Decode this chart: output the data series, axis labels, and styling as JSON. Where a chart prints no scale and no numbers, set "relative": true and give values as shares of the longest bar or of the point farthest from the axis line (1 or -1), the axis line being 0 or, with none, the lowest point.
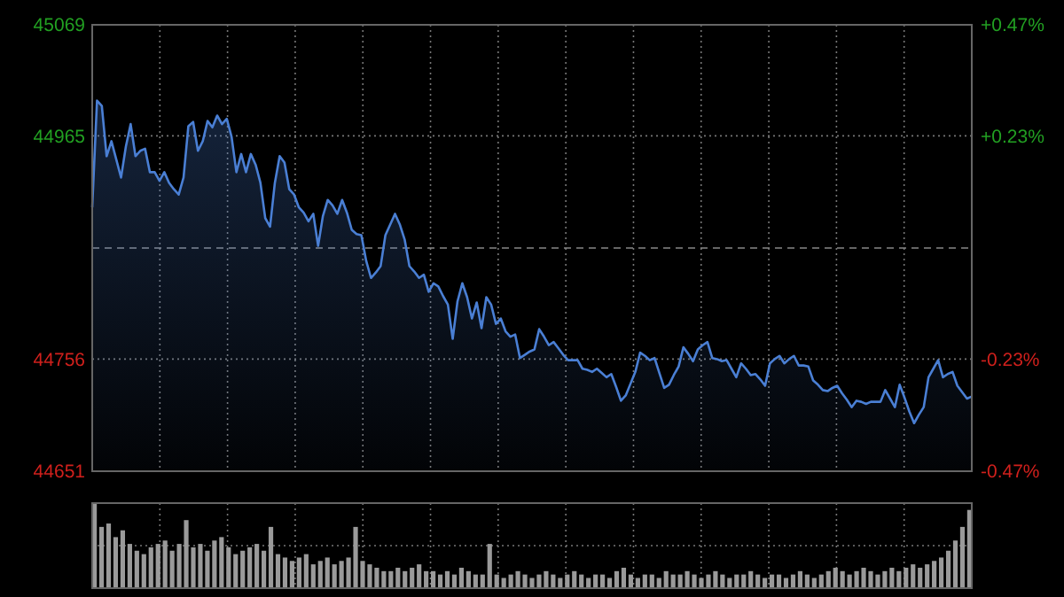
{
  "chart_data": [
    {
      "type": "area",
      "color": "#4a7fd4",
      "categories": [
        null,
        null,
        null,
        null,
        null,
        null,
        null,
        null,
        null,
        null,
        null,
        null,
        null,
        null,
        null,
        null,
        null,
        null,
        null,
        null,
        null,
        null,
        null,
        null,
        null,
        null,
        null,
        null,
        null,
        null,
        null,
        null,
        null,
        null,
        null,
        null,
        null,
        null,
        null,
        null,
        null,
        null,
        null,
        null,
        null,
        null,
        null,
        null,
        null,
        null,
        null,
        null,
        null,
        null,
        null,
        null,
        null,
        null,
        null,
        null,
        null,
        null,
        null,
        null,
        null,
        null,
        null,
        null,
        null,
        null,
        null,
        null,
        null,
        null,
        null,
        null,
        null,
        null,
        null,
        null,
        null,
        null,
        null,
        null,
        null,
        null,
        null,
        null,
        null,
        null,
        null,
        null,
        null,
        null,
        null,
        null,
        null,
        null,
        null,
        null,
        null,
        null,
        null,
        null,
        null,
        null,
        null,
        null,
        null,
        null,
        null,
        null,
        null,
        null,
        null,
        null,
        null,
        null,
        null,
        null,
        null,
        null,
        null,
        null,
        null,
        null,
        null,
        null,
        null,
        null,
        null,
        null,
        null,
        null,
        null,
        null,
        null,
        null,
        null,
        null,
        null,
        null,
        null,
        null,
        null,
        null,
        null,
        null,
        null,
        null,
        null,
        null,
        null,
        null,
        null,
        null,
        null,
        null,
        null,
        null,
        null,
        null,
        null,
        null,
        null,
        null,
        null,
        null,
        null,
        null,
        null,
        null,
        null,
        null,
        null,
        null,
        null,
        null,
        null,
        null,
        null,
        null,
        null,
        null
      ],
      "values": [
        44898,
        44998,
        44993,
        44946,
        44960,
        44943,
        44926,
        44955,
        44976,
        44946,
        44951,
        44953,
        44931,
        44931,
        44923,
        44931,
        44921,
        44915,
        44910,
        44926,
        44974,
        44978,
        44951,
        44960,
        44979,
        44973,
        44984,
        44976,
        44981,
        44964,
        44931,
        44948,
        44931,
        44948,
        44938,
        44921,
        44888,
        44880,
        44921,
        44946,
        44940,
        44915,
        44910,
        44898,
        44893,
        44885,
        44892,
        44862,
        44890,
        44905,
        44900,
        44892,
        44905,
        44893,
        44877,
        44873,
        44872,
        44848,
        44832,
        44837,
        44843,
        44872,
        44882,
        44892,
        44882,
        44868,
        44843,
        44838,
        44832,
        44835,
        44819,
        44827,
        44824,
        44815,
        44807,
        44775,
        44810,
        44827,
        44814,
        44794,
        44809,
        44785,
        44814,
        44807,
        44789,
        44794,
        44782,
        44777,
        44779,
        44757,
        44760,
        44763,
        44765,
        44784,
        44777,
        44769,
        44772,
        44766,
        44760,
        44755,
        44755,
        44755,
        44747,
        44746,
        44744,
        44747,
        44743,
        44739,
        44742,
        44730,
        44717,
        44722,
        44733,
        44744,
        44762,
        44759,
        44755,
        44757,
        44743,
        44729,
        44732,
        44741,
        44749,
        44767,
        44761,
        44754,
        44765,
        44769,
        44772,
        44757,
        44756,
        44754,
        44755,
        44747,
        44739,
        44752,
        44747,
        44741,
        44742,
        44737,
        44731,
        44752,
        44756,
        44759,
        44752,
        44756,
        44759,
        44750,
        44750,
        44749,
        44736,
        44732,
        44727,
        44726,
        44729,
        44731,
        44724,
        44718,
        44711,
        44717,
        44716,
        44714,
        44716,
        44716,
        44716,
        44727,
        44719,
        44711,
        44732,
        44720,
        44707,
        44696,
        44704,
        44711,
        44739,
        44747,
        44755,
        44739,
        44742,
        44744,
        44731,
        44725,
        44719,
        44721
      ],
      "ylim": [
        44651,
        45069
      ],
      "yticks": [
        44651,
        44756,
        44965,
        45069
      ],
      "y2lim": [
        -0.466,
        0.466
      ],
      "y2ticks": [
        {
          "value": -0.466,
          "label": "-0.47%"
        },
        {
          "value": -0.232,
          "label": "-0.23%"
        },
        {
          "value": 0.234,
          "label": "+0.23%"
        },
        {
          "value": 0.466,
          "label": "+0.47%"
        }
      ],
      "ref_lines": [
        {
          "axis": "y",
          "value": 44860,
          "color": "#888888",
          "line_style": "dashed"
        }
      ],
      "grid": true
    },
    {
      "type": "bar",
      "relative": true,
      "color": "#9a9a9a",
      "grid": true,
      "categories": [
        null,
        null,
        null,
        null,
        null,
        null,
        null,
        null,
        null,
        null,
        null,
        null,
        null,
        null,
        null,
        null,
        null,
        null,
        null,
        null,
        null,
        null,
        null,
        null,
        null,
        null,
        null,
        null,
        null,
        null,
        null,
        null,
        null,
        null,
        null,
        null,
        null,
        null,
        null,
        null,
        null,
        null,
        null,
        null,
        null,
        null,
        null,
        null,
        null,
        null,
        null,
        null,
        null,
        null,
        null,
        null,
        null,
        null,
        null,
        null,
        null,
        null,
        null,
        null,
        null,
        null,
        null,
        null,
        null,
        null,
        null,
        null,
        null,
        null,
        null,
        null,
        null,
        null,
        null,
        null,
        null,
        null,
        null,
        null,
        null,
        null,
        null,
        null,
        null,
        null,
        null,
        null,
        null,
        null,
        null,
        null,
        null,
        null,
        null,
        null,
        null,
        null,
        null,
        null,
        null,
        null,
        null,
        null,
        null,
        null,
        null,
        null,
        null,
        null,
        null,
        null,
        null,
        null,
        null,
        null,
        null,
        null,
        null,
        null,
        null
      ],
      "values": [
        1,
        0.72,
        0.76,
        0.6,
        0.68,
        0.52,
        0.44,
        0.4,
        0.48,
        0.52,
        0.56,
        0.44,
        0.52,
        0.8,
        0.48,
        0.52,
        0.44,
        0.56,
        0.6,
        0.48,
        0.4,
        0.44,
        0.48,
        0.52,
        0.44,
        0.72,
        0.4,
        0.36,
        0.32,
        0.36,
        0.4,
        0.28,
        0.32,
        0.36,
        0.28,
        0.32,
        0.36,
        0.72,
        0.32,
        0.28,
        0.24,
        0.2,
        0.2,
        0.24,
        0.2,
        0.24,
        0.28,
        0.2,
        0.2,
        0.16,
        0.2,
        0.16,
        0.24,
        0.2,
        0.16,
        0.16,
        0.52,
        0.16,
        0.12,
        0.16,
        0.2,
        0.16,
        0.12,
        0.16,
        0.2,
        0.16,
        0.12,
        0.16,
        0.2,
        0.16,
        0.12,
        0.16,
        0.16,
        0.12,
        0.2,
        0.24,
        0.16,
        0.12,
        0.16,
        0.16,
        0.12,
        0.2,
        0.16,
        0.16,
        0.2,
        0.16,
        0.12,
        0.16,
        0.2,
        0.16,
        0.12,
        0.16,
        0.16,
        0.2,
        0.16,
        0.12,
        0.16,
        0.16,
        0.12,
        0.16,
        0.2,
        0.16,
        0.12,
        0.16,
        0.2,
        0.24,
        0.2,
        0.16,
        0.2,
        0.24,
        0.2,
        0.16,
        0.2,
        0.24,
        0.2,
        0.24,
        0.28,
        0.24,
        0.28,
        0.32,
        0.36,
        0.44,
        0.56,
        0.72,
        0.92
      ]
    }
  ]
}
